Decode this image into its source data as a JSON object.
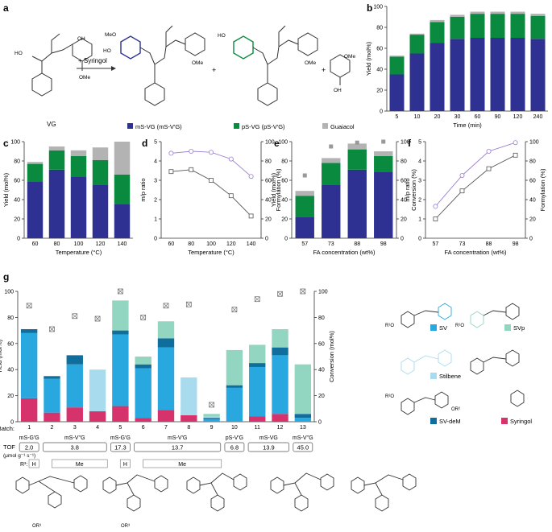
{
  "panel_labels": {
    "a": "a",
    "b": "b",
    "c": "c",
    "d": "d",
    "e": "e",
    "f": "f",
    "g": "g"
  },
  "panel_a": {
    "vg_label": "VG",
    "reagent": "+ Syringol",
    "plus1": "+",
    "plus2": "+",
    "legend": [
      {
        "label": "mS-VG (mS-V'G)",
        "color": "#2e3192"
      },
      {
        "label": "pS-VG (pS-V'G)",
        "color": "#0a8a3f"
      },
      {
        "label": "Guaiacol",
        "color": "#b3b3b3"
      }
    ],
    "groups": {
      "meo": "MeO",
      "ome": "OMe",
      "ho": "HO",
      "oh": "OH"
    }
  },
  "chart_data": [
    {
      "id": "b",
      "type": "bar",
      "stacked": true,
      "categories": [
        "5",
        "10",
        "20",
        "30",
        "60",
        "90",
        "120",
        "240"
      ],
      "series": [
        {
          "name": "mS-VG",
          "color": "#2e3192",
          "values": [
            35,
            55,
            65,
            69,
            70,
            70,
            70,
            69
          ]
        },
        {
          "name": "pS-VG",
          "color": "#0a8a3f",
          "values": [
            17,
            18,
            20,
            21,
            23,
            23,
            23,
            22
          ]
        },
        {
          "name": "Guaiacol",
          "color": "#b3b3b3",
          "values": [
            1,
            1,
            2,
            2,
            2,
            2,
            2,
            2
          ]
        }
      ],
      "xlabel": "Time (min)",
      "ylabel": "Yield (mol%)",
      "ylim": [
        0,
        100
      ],
      "yticks": [
        "0",
        "20",
        "40",
        "60",
        "80",
        "100"
      ]
    },
    {
      "id": "c",
      "type": "bar",
      "stacked": true,
      "categories": [
        "60",
        "80",
        "100",
        "120",
        "140"
      ],
      "series": [
        {
          "name": "mS-VG",
          "color": "#2e3192",
          "values": [
            59,
            71,
            64,
            55,
            35
          ]
        },
        {
          "name": "pS-VG",
          "color": "#0a8a3f",
          "values": [
            18,
            20,
            21,
            26,
            31
          ]
        },
        {
          "name": "Guaiacol",
          "color": "#b3b3b3",
          "values": [
            2,
            4,
            6,
            13,
            34
          ]
        }
      ],
      "xlabel": "Temperature (°C)",
      "ylabel": "Yield (mol%)",
      "ylim": [
        0,
        100
      ],
      "yticks": [
        "0",
        "20",
        "40",
        "60",
        "80",
        "100"
      ]
    },
    {
      "id": "d",
      "type": "line",
      "x": [
        "60",
        "80",
        "100",
        "120",
        "140"
      ],
      "series": [
        {
          "name": "m/p ratio",
          "axis": "left",
          "marker": "square",
          "color": "#555555",
          "values": [
            3.45,
            3.55,
            3.0,
            2.2,
            1.15
          ]
        },
        {
          "name": "Formylation",
          "axis": "right",
          "marker": "circle",
          "color": "#9b7fd1",
          "values": [
            88,
            90,
            89,
            82,
            64
          ]
        }
      ],
      "xlabel": "Temperature (°C)",
      "ylabel": "m/p ratio",
      "ylabel2": "Formylation (%)",
      "ylim": [
        0,
        5
      ],
      "ylim2": [
        0,
        100
      ],
      "yticks": [
        "0",
        "1",
        "2",
        "3",
        "4",
        "5"
      ],
      "yticks2": [
        "0",
        "20",
        "40",
        "60",
        "80",
        "100"
      ]
    },
    {
      "id": "e",
      "type": "bar",
      "stacked": true,
      "categories": [
        "57",
        "73",
        "88",
        "98"
      ],
      "series": [
        {
          "name": "mS-VG",
          "color": "#2e3192",
          "values": [
            22,
            55,
            71,
            69
          ]
        },
        {
          "name": "pS-VG",
          "color": "#0a8a3f",
          "values": [
            22,
            23,
            21,
            16
          ]
        },
        {
          "name": "Guaiacol",
          "color": "#b3b3b3",
          "values": [
            5,
            5,
            6,
            5
          ]
        }
      ],
      "conversion": {
        "name": "Conversion",
        "values": [
          65,
          95,
          99,
          100
        ]
      },
      "xlabel": "FA concentration (wt%)",
      "ylabel": "Yield (mol%)",
      "ylabel2": "Conversion (%)",
      "ylim": [
        0,
        100
      ],
      "ylim2": [
        0,
        100
      ],
      "yticks": [
        "0",
        "20",
        "40",
        "60",
        "80",
        "100"
      ],
      "yticks2": [
        "0",
        "20",
        "40",
        "60",
        "80",
        "100"
      ]
    },
    {
      "id": "f",
      "type": "line",
      "x": [
        "57",
        "73",
        "88",
        "98"
      ],
      "series": [
        {
          "name": "m/p ratio",
          "axis": "left",
          "marker": "square",
          "color": "#555555",
          "values": [
            1.0,
            2.45,
            3.6,
            4.3
          ]
        },
        {
          "name": "Formylation",
          "axis": "right",
          "marker": "circle",
          "color": "#9b7fd1",
          "values": [
            33,
            65,
            90,
            99
          ]
        }
      ],
      "xlabel": "FA concentration (wt%)",
      "ylabel": "m/p ratio",
      "ylabel2": "Formylation (%)",
      "ylim": [
        0,
        5
      ],
      "ylim2": [
        0,
        100
      ],
      "yticks": [
        "0",
        "1",
        "2",
        "3",
        "4",
        "5"
      ],
      "yticks2": [
        "0",
        "20",
        "40",
        "60",
        "80",
        "100"
      ]
    },
    {
      "id": "g",
      "type": "bar",
      "stacked": true,
      "categories": [
        "1",
        "2",
        "3",
        "4",
        "5",
        "6",
        "7",
        "8",
        "9",
        "10",
        "11",
        "12",
        "13"
      ],
      "series": [
        {
          "name": "Syringol",
          "color": "#d6336c",
          "values": [
            18,
            7,
            11,
            8,
            12,
            3,
            9,
            5,
            0,
            0,
            4,
            6,
            0
          ]
        },
        {
          "name": "SV",
          "color": "#29a8e0",
          "values": [
            50,
            26,
            33,
            0,
            55,
            38,
            48,
            0,
            2,
            26,
            38,
            45,
            3
          ]
        },
        {
          "name": "SV-deM",
          "color": "#0f6e9b",
          "values": [
            3,
            2,
            7,
            0,
            3,
            3,
            7,
            0,
            1,
            2,
            3,
            6,
            3
          ]
        },
        {
          "name": "Stilbene",
          "color": "#a9dbee",
          "values": [
            0,
            0,
            0,
            32,
            0,
            0,
            0,
            29,
            1,
            0,
            0,
            0,
            0
          ]
        },
        {
          "name": "SVp",
          "color": "#92d5c1",
          "values": [
            0,
            0,
            0,
            0,
            23,
            6,
            13,
            0,
            2,
            27,
            14,
            14,
            38
          ]
        }
      ],
      "conversion": {
        "name": "Conversion",
        "values": [
          89,
          71,
          81,
          79,
          100,
          80,
          89,
          90,
          13,
          86,
          94,
          98,
          100
        ]
      },
      "ylabel": "Yield (mol%)",
      "ylabel2": "Conversion (mol%)",
      "ylim": [
        0,
        100
      ],
      "yticks": [
        "0",
        "20",
        "40",
        "60",
        "80",
        "100"
      ],
      "yticks2": [
        "0",
        "20",
        "40",
        "60",
        "80",
        "100"
      ],
      "batch_label": "Batch:",
      "tof_label": "TOF",
      "tof_units": "(μmol g⁻¹ s⁻¹)",
      "r3_label": "R³:",
      "groups": [
        {
          "name": "mS-G'G",
          "tof": "2.0",
          "batches": [
            1
          ]
        },
        {
          "name": "mS-V''G",
          "tof": "3.8",
          "batches": [
            2,
            3,
            4
          ]
        },
        {
          "name": "mS-G'G",
          "tof": "17.3",
          "batches": [
            5
          ]
        },
        {
          "name": "mS-V'G",
          "tof": "13.7",
          "batches": [
            6,
            7,
            8,
            9
          ]
        },
        {
          "name": "pS-V'G",
          "tof": "6.8",
          "batches": [
            10
          ]
        },
        {
          "name": "mS-VG",
          "tof": "13.9",
          "batches": [
            11,
            12
          ]
        },
        {
          "name": "mS-V''G",
          "tof": "45.0",
          "batches": [
            13
          ]
        }
      ],
      "r3_values": [
        {
          "label": "H"
        },
        {
          "label": "Me"
        },
        {
          "label": "H"
        },
        {
          "label": "Me"
        }
      ],
      "legend": [
        {
          "name": "SV",
          "color": "#29a8e0"
        },
        {
          "name": "SVp",
          "color": "#92d5c1"
        },
        {
          "name": "Stilbene",
          "color": "#a9dbee"
        },
        {
          "name": "SV-deM",
          "color": "#0f6e9b"
        },
        {
          "name": "Syringol",
          "color": "#d6336c"
        }
      ]
    }
  ],
  "struct_labels": {
    "r1o": "R¹O",
    "r2o": "R²O",
    "or2": "OR²",
    "or3": "OR³",
    "r3": "R³"
  }
}
